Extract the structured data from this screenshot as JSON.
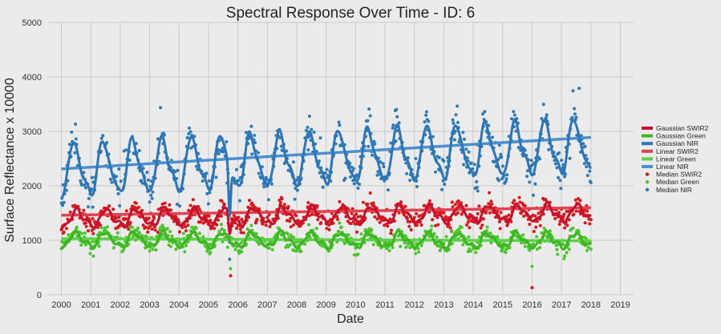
{
  "chart_data": {
    "type": "line",
    "title": "Spectral Response Over Time - ID: 6",
    "xlabel": "Date",
    "ylabel": "Surface Reflectance x 10000",
    "xlim": [
      1999.55,
      2019.45
    ],
    "ylim": [
      0,
      5000
    ],
    "xticks": [
      2000,
      2001,
      2002,
      2003,
      2004,
      2005,
      2006,
      2007,
      2008,
      2009,
      2010,
      2011,
      2012,
      2013,
      2014,
      2015,
      2016,
      2017,
      2018,
      2019
    ],
    "yticks": [
      0,
      1000,
      2000,
      3000,
      4000,
      5000
    ],
    "grid": true,
    "legend_position": "right",
    "colors": {
      "swir2_gauss": "#c8102e",
      "green_gauss": "#3cb521",
      "nir_gauss": "#2e75b6",
      "swir2_linear": "#e0434f",
      "green_linear": "#5ed04a",
      "nir_linear": "#4a8fcf",
      "swir2_median": "#d7191c",
      "green_median": "#4bc42e",
      "nir_median": "#2c7bb6"
    },
    "series_params": {
      "nir": {
        "base": 2500,
        "trend_per_year": 25,
        "amplitude": 450,
        "peak_year_frac": 0.45
      },
      "swir2": {
        "base": 1450,
        "trend_per_year": 6,
        "amplitude": 140,
        "peak_year_frac": 0.55
      },
      "green": {
        "base": 1000,
        "trend_per_year": -1,
        "amplitude": 120,
        "peak_year_frac": 0.5
      }
    },
    "linear_trends": [
      {
        "name": "Linear NIR",
        "x": [
          2000,
          2018
        ],
        "y": [
          2310,
          2890
        ]
      },
      {
        "name": "Linear SWIR2",
        "x": [
          2000,
          2018
        ],
        "y": [
          1460,
          1600
        ]
      },
      {
        "name": "Linear Green",
        "x": [
          2000,
          2018
        ],
        "y": [
          1030,
          990
        ]
      }
    ],
    "outliers": [
      {
        "series": "Median SWIR2",
        "x": 2005.75,
        "y": 350
      },
      {
        "series": "Median Green",
        "x": 2005.75,
        "y": 480
      },
      {
        "series": "Median NIR",
        "x": 2005.72,
        "y": 650
      },
      {
        "series": "Median SWIR2",
        "x": 2016.0,
        "y": 130
      },
      {
        "series": "Median Green",
        "x": 2016.0,
        "y": 520
      },
      {
        "series": "Median NIR",
        "x": 2017.6,
        "y": 3790
      }
    ],
    "legend": [
      {
        "label": "Gaussian SWIR2",
        "kind": "line",
        "color_key": "swir2_gauss"
      },
      {
        "label": "Gaussian Green",
        "kind": "line",
        "color_key": "green_gauss"
      },
      {
        "label": "Gaussian NIR",
        "kind": "line",
        "color_key": "nir_gauss"
      },
      {
        "label": "Linear SWIR2",
        "kind": "line",
        "color_key": "swir2_linear"
      },
      {
        "label": "Linear Green",
        "kind": "line",
        "color_key": "green_linear"
      },
      {
        "label": "Linear NIR",
        "kind": "line",
        "color_key": "nir_linear"
      },
      {
        "label": "Median SWIR2",
        "kind": "dot",
        "color_key": "swir2_median"
      },
      {
        "label": "Median Green",
        "kind": "dot",
        "color_key": "green_median"
      },
      {
        "label": "Median NIR",
        "kind": "dot",
        "color_key": "nir_median"
      }
    ]
  }
}
